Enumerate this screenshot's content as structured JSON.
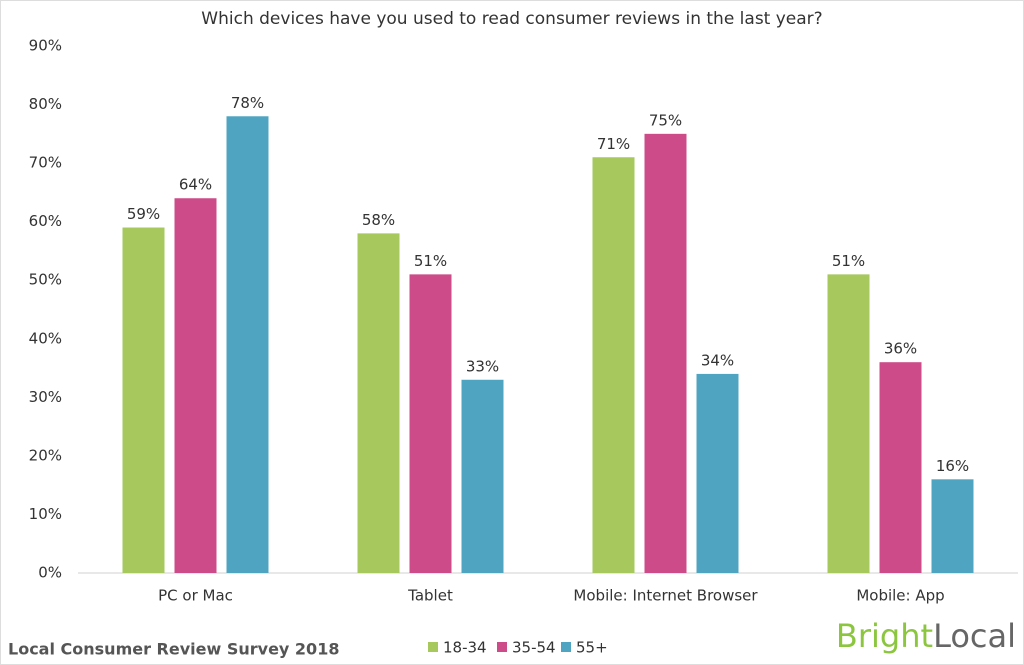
{
  "chart_data": {
    "type": "bar",
    "title": "Which devices have you used to read consumer reviews in the last year?",
    "categories": [
      "PC or Mac",
      "Tablet",
      "Mobile: Internet Browser",
      "Mobile: App"
    ],
    "series": [
      {
        "name": "18-34",
        "color": "#a6c85c",
        "values": [
          59,
          58,
          71,
          51
        ],
        "value_labels": [
          "59%",
          "58%",
          "71%",
          "51%"
        ]
      },
      {
        "name": "35-54",
        "color": "#cc4b88",
        "values": [
          64,
          51,
          75,
          36
        ],
        "value_labels": [
          "64%",
          "51%",
          "75%",
          "36%"
        ]
      },
      {
        "name": "55+",
        "color": "#4fa5c1",
        "values": [
          78,
          33,
          34,
          16
        ],
        "value_labels": [
          "78%",
          "33%",
          "34%",
          "16%"
        ]
      }
    ],
    "ylim": [
      0,
      90
    ],
    "yticks": [
      {
        "value": 0,
        "label": "0%"
      },
      {
        "value": 10,
        "label": "10%"
      },
      {
        "value": 20,
        "label": "20%"
      },
      {
        "value": 30,
        "label": "30%"
      },
      {
        "value": 40,
        "label": "40%"
      },
      {
        "value": 50,
        "label": "50%"
      },
      {
        "value": 60,
        "label": "60%"
      },
      {
        "value": 70,
        "label": "70%"
      },
      {
        "value": 80,
        "label": "80%"
      },
      {
        "value": 90,
        "label": "90%"
      }
    ],
    "grid": false,
    "legend": "bottom",
    "source": "Local Consumer Review Survey 2018",
    "logo": [
      "Bright",
      "Local"
    ]
  }
}
